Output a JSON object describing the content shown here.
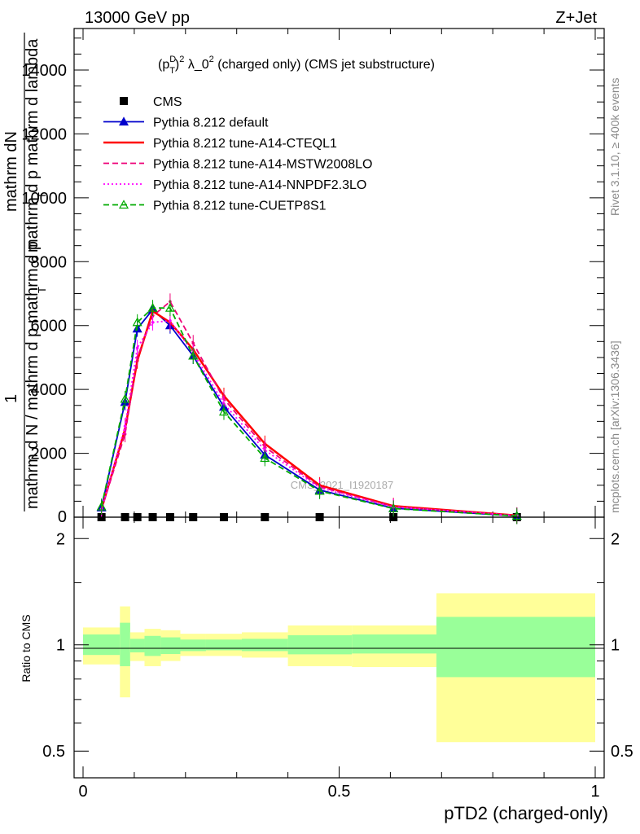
{
  "header": {
    "left": "13000 GeV pp",
    "right": "Z+Jet"
  },
  "side_labels": {
    "rivet": "Rivet 3.1.10, ≥ 400k events",
    "mcplots": "mcplots.cern.ch [arXiv:1306.3436]"
  },
  "watermark": "CMS_2021_I1920187",
  "chart_data": [
    {
      "type": "line",
      "title": "(p_T^D)^2 λ_0^2 (charged only) (CMS jet substructure)",
      "title_parts": {
        "pre": "(p",
        "sup1": "D",
        "sub1": "T",
        "mid": ")",
        "sup2": "2",
        "post": " λ_0",
        "sup3": "2",
        "tail": " (charged only) (CMS jet substructure)"
      },
      "ylabel_top": "mathrm dN",
      "ylabel_top2": "mathrm d p  mathrm d lambda",
      "ylabel_bottom": "mathrm d N / mathrm d p  mathrm d p",
      "ylabel_one": "1",
      "ylabel_T": "T",
      "ylim": [
        0,
        15300
      ],
      "xlim": [
        -0.02,
        1.02
      ],
      "yticks": [
        {
          "v": 2000,
          "label": "2000"
        },
        {
          "v": 4000,
          "label": "4000"
        },
        {
          "v": 6000,
          "label": "6000"
        },
        {
          "v": 8000,
          "label": "8000"
        },
        {
          "v": 10000,
          "label": "10000"
        },
        {
          "v": 12000,
          "label": "12000"
        },
        {
          "v": 14000,
          "label": "14000"
        }
      ],
      "yticks_zero_label": "0",
      "legend_position": "top-left",
      "series": [
        {
          "name": "CMS",
          "color": "#000000",
          "style": "marker-square",
          "x": [
            0.036,
            0.082,
            0.106,
            0.136,
            0.17,
            0.215,
            0.275,
            0.355,
            0.462,
            0.606,
            0.847
          ],
          "y": [
            0,
            0,
            0,
            0,
            0,
            0,
            0,
            0,
            0,
            0,
            0
          ]
        },
        {
          "name": "Pythia 8.212 default",
          "color": "#0000cc",
          "style": "solid-triangle",
          "x": [
            0.036,
            0.082,
            0.106,
            0.136,
            0.17,
            0.215,
            0.275,
            0.355,
            0.462,
            0.606,
            0.847
          ],
          "y": [
            300,
            3600,
            5900,
            6500,
            6000,
            5050,
            3450,
            1950,
            850,
            280,
            40
          ]
        },
        {
          "name": "Pythia 8.212 tune-A14-CTEQL1",
          "color": "#ff0000",
          "style": "solid",
          "x": [
            0.036,
            0.082,
            0.106,
            0.136,
            0.17,
            0.215,
            0.275,
            0.355,
            0.462,
            0.606,
            0.847
          ],
          "y": [
            250,
            2750,
            4900,
            6450,
            6100,
            5250,
            3800,
            2300,
            1000,
            350,
            55
          ]
        },
        {
          "name": "Pythia 8.212 tune-A14-MSTW2008LO",
          "color": "#ee0077",
          "style": "dashed",
          "x": [
            0.036,
            0.082,
            0.106,
            0.136,
            0.17,
            0.215,
            0.275,
            0.355,
            0.462,
            0.606,
            0.847
          ],
          "y": [
            240,
            2600,
            5000,
            6300,
            6750,
            5450,
            3700,
            2200,
            950,
            330,
            50
          ]
        },
        {
          "name": "Pythia 8.212 tune-A14-NNPDF2.3LO",
          "color": "#ff00ff",
          "style": "dotted",
          "x": [
            0.036,
            0.082,
            0.106,
            0.136,
            0.17,
            0.215,
            0.275,
            0.355,
            0.462,
            0.606,
            0.847
          ],
          "y": [
            250,
            2850,
            5300,
            6100,
            6150,
            5150,
            3550,
            2100,
            920,
            320,
            48
          ]
        },
        {
          "name": "Pythia 8.212 tune-CUETP8S1",
          "color": "#00aa00",
          "style": "dashed-open-triangle",
          "x": [
            0.036,
            0.082,
            0.106,
            0.136,
            0.17,
            0.215,
            0.275,
            0.355,
            0.462,
            0.606,
            0.847
          ],
          "y": [
            330,
            3700,
            6100,
            6550,
            6550,
            5050,
            3300,
            1850,
            820,
            270,
            38
          ]
        }
      ]
    },
    {
      "type": "area",
      "ylabel": "Ratio to CMS",
      "xlabel": "pTD2 (charged-only)",
      "ylim": [
        0.42,
        2.3
      ],
      "xticks": [
        {
          "v": 0,
          "label": "0"
        },
        {
          "v": 0.5,
          "label": "0.5"
        },
        {
          "v": 1,
          "label": "1"
        }
      ],
      "yticks": [
        {
          "v": 0.5,
          "label": "0.5"
        },
        {
          "v": 1,
          "label": "1"
        },
        {
          "v": 2,
          "label": "2"
        }
      ],
      "bins": [
        {
          "x": [
            0.0,
            0.072
          ],
          "inner": [
            0.936,
            1.07
          ],
          "outer": [
            0.88,
            1.12
          ]
        },
        {
          "x": [
            0.072,
            0.092
          ],
          "inner": [
            0.87,
            1.155
          ],
          "outer": [
            0.71,
            1.285
          ]
        },
        {
          "x": [
            0.092,
            0.12
          ],
          "inner": [
            0.952,
            1.04
          ],
          "outer": [
            0.9,
            1.085
          ]
        },
        {
          "x": [
            0.12,
            0.152
          ],
          "inner": [
            0.93,
            1.06
          ],
          "outer": [
            0.87,
            1.11
          ]
        },
        {
          "x": [
            0.152,
            0.19
          ],
          "inner": [
            0.942,
            1.05
          ],
          "outer": [
            0.9,
            1.1
          ]
        },
        {
          "x": [
            0.19,
            0.24
          ],
          "inner": [
            0.96,
            1.035
          ],
          "outer": [
            0.93,
            1.075
          ]
        },
        {
          "x": [
            0.24,
            0.31
          ],
          "inner": [
            0.965,
            1.035
          ],
          "outer": [
            0.93,
            1.075
          ]
        },
        {
          "x": [
            0.31,
            0.4
          ],
          "inner": [
            0.96,
            1.04
          ],
          "outer": [
            0.92,
            1.085
          ]
        },
        {
          "x": [
            0.4,
            0.525
          ],
          "inner": [
            0.94,
            1.065
          ],
          "outer": [
            0.87,
            1.135
          ]
        },
        {
          "x": [
            0.525,
            0.69
          ],
          "inner": [
            0.945,
            1.07
          ],
          "outer": [
            0.865,
            1.135
          ]
        },
        {
          "x": [
            0.69,
            1.0
          ],
          "inner": [
            0.81,
            1.2
          ],
          "outer": [
            0.53,
            1.4
          ]
        }
      ],
      "colors": {
        "inner": "#99ff99",
        "outer": "#ffff99"
      }
    }
  ]
}
